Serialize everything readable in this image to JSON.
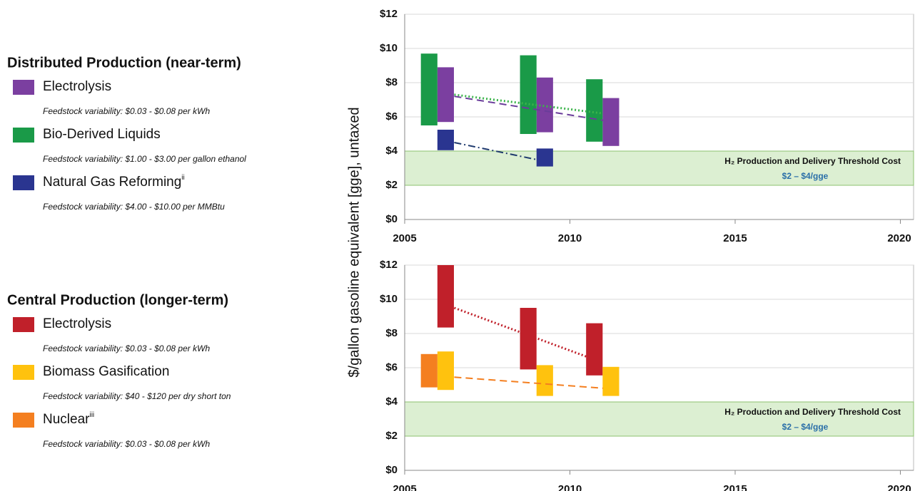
{
  "y_label": "$/gallon gasoline equivalent [gge], untaxed",
  "chart_data": [
    {
      "type": "floating-bar",
      "legend_title": "Distributed Production (near-term)",
      "xlim": [
        2005,
        2020.4
      ],
      "xticks": [
        2005,
        2010,
        2015,
        2020
      ],
      "ylim": [
        0,
        12
      ],
      "yticks": [
        {
          "value": 0,
          "label": "$0"
        },
        {
          "value": 2,
          "label": "$2"
        },
        {
          "value": 4,
          "label": "$4"
        },
        {
          "value": 6,
          "label": "$6"
        },
        {
          "value": 8,
          "label": "$8"
        },
        {
          "value": 10,
          "label": "$10"
        },
        {
          "value": 12,
          "label": "$12"
        }
      ],
      "grid": true,
      "band": {
        "low": 2,
        "high": 4,
        "label": "H₂ Production and Delivery Threshold Cost",
        "sublabel": "$2 – $4/gge"
      },
      "series": [
        {
          "name": "Electrolysis",
          "note": "Feedstock variability: $0.03 - $0.08 per kWh",
          "color": "#7b3fa0",
          "x": [
            2006.24,
            2009.24,
            2011.24
          ],
          "low": [
            5.7,
            5.1,
            4.3
          ],
          "high": [
            8.9,
            8.3,
            7.1
          ]
        },
        {
          "name": "Bio-Derived Liquids",
          "note": "Feedstock variability: $1.00 - $3.00 per gallon ethanol",
          "color": "#1a9a48",
          "x": [
            2005.74,
            2008.74,
            2010.74
          ],
          "low": [
            5.5,
            5.0,
            4.55
          ],
          "high": [
            9.7,
            9.6,
            8.2
          ]
        },
        {
          "name": "Natural Gas Reforming",
          "footnote": "ii",
          "note": "Feedstock variability: $4.00 - $10.00 per MMBtu",
          "color": "#2a3590",
          "x": [
            2006.24,
            2009.24
          ],
          "low": [
            4.05,
            3.1
          ],
          "high": [
            5.25,
            4.15
          ]
        }
      ],
      "trends": [
        {
          "color": "#3cb44b",
          "style": "dotted",
          "x": [
            2006.5,
            2011
          ],
          "values": [
            7.3,
            6.2
          ]
        },
        {
          "color": "#6a3d9a",
          "style": "dashed",
          "x": [
            2006.5,
            2011
          ],
          "values": [
            7.2,
            5.8
          ]
        },
        {
          "color": "#1f3a6e",
          "style": "dashdot",
          "x": [
            2006.5,
            2009
          ],
          "values": [
            4.5,
            3.5
          ]
        }
      ]
    },
    {
      "type": "floating-bar",
      "legend_title": "Central Production (longer-term)",
      "xlim": [
        2005,
        2020.4
      ],
      "xticks": [
        2005,
        2010,
        2015,
        2020
      ],
      "ylim": [
        0,
        12
      ],
      "yticks": [
        {
          "value": 0,
          "label": "$0"
        },
        {
          "value": 2,
          "label": "$2"
        },
        {
          "value": 4,
          "label": "$4"
        },
        {
          "value": 6,
          "label": "$6"
        },
        {
          "value": 8,
          "label": "$8"
        },
        {
          "value": 10,
          "label": "$10"
        },
        {
          "value": 12,
          "label": "$12"
        }
      ],
      "grid": true,
      "band": {
        "low": 2,
        "high": 4,
        "label": "H₂ Production and Delivery Threshold Cost",
        "sublabel": "$2 – $4/gge"
      },
      "series": [
        {
          "name": "Electrolysis",
          "note": "Feedstock variability: $0.03 - $0.08 per kWh",
          "color": "#c0202a",
          "x": [
            2006.24,
            2008.74,
            2010.74
          ],
          "low": [
            8.35,
            5.9,
            5.55
          ],
          "high": [
            12,
            9.5,
            8.6
          ]
        },
        {
          "name": "Biomass Gasification",
          "note": "Feedstock variability: $40 - $120 per dry short ton",
          "color": "#ffc20e",
          "x": [
            2006.24,
            2009.24,
            2011.24
          ],
          "low": [
            4.7,
            4.35,
            4.35
          ],
          "high": [
            6.95,
            6.15,
            6.05
          ]
        },
        {
          "name": "Nuclear",
          "footnote": "iii",
          "note": "Feedstock variability: $0.03 - $0.08 per kWh",
          "color": "#f47f20",
          "x": [
            2005.74
          ],
          "low": [
            4.85
          ],
          "high": [
            6.8
          ]
        }
      ],
      "trends": [
        {
          "color": "#c0202a",
          "style": "dotted",
          "x": [
            2006.5,
            2010.5
          ],
          "values": [
            9.5,
            6.65
          ]
        },
        {
          "color": "#f47f20",
          "style": "dashed",
          "x": [
            2006.5,
            2011
          ],
          "values": [
            5.45,
            4.8
          ]
        }
      ]
    }
  ]
}
